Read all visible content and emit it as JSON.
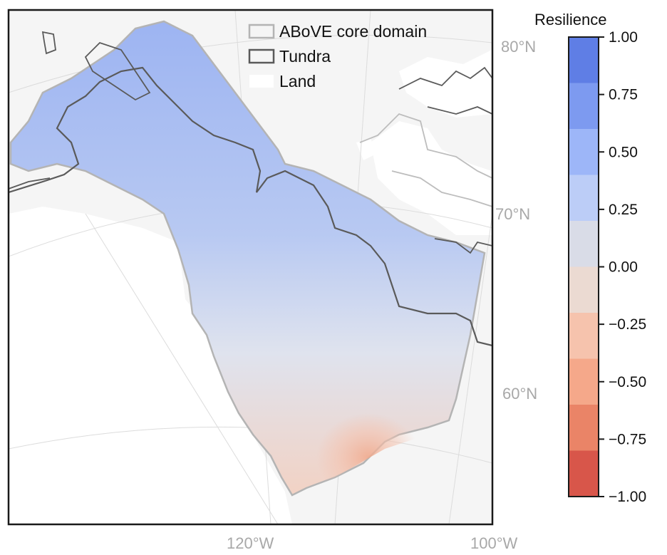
{
  "legend": {
    "core_domain": "ABoVE core domain",
    "tundra": "Tundra",
    "land": "Land"
  },
  "coord_labels": {
    "lat_80": "80°N",
    "lat_70": "70°N",
    "lat_60": "60°N",
    "lon_120": "120°W",
    "lon_100": "100°W"
  },
  "colorbar": {
    "title": "Resilience",
    "ticks": [
      "1.00",
      "0.75",
      "0.50",
      "0.25",
      "0.00",
      "−0.25",
      "−0.50",
      "−0.75",
      "−1.00"
    ],
    "colors": [
      "#5f7ee5",
      "#7d9af0",
      "#9db6f8",
      "#bccdf7",
      "#d9dce7",
      "#ebdad2",
      "#f6c3ad",
      "#f5a88a",
      "#ea8467",
      "#d8564a"
    ]
  },
  "colors": {
    "background": "#f5f5f5",
    "land": "#ffffff",
    "domain_outline": "#b4b4b4",
    "tundra_outline": "#5a5a5a"
  }
}
